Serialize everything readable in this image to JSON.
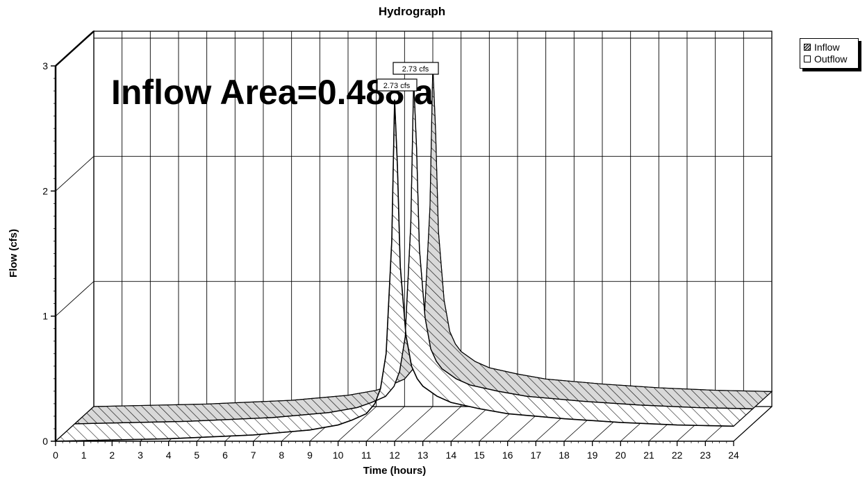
{
  "chart_data": {
    "type": "area",
    "title": "Hydrograph",
    "xlabel": "Time  (hours)",
    "ylabel": "Flow  (cfs)",
    "xlim": [
      0,
      24
    ],
    "ylim": [
      0,
      3
    ],
    "x_ticks": [
      "0",
      "1",
      "2",
      "3",
      "4",
      "5",
      "6",
      "7",
      "8",
      "9",
      "10",
      "11",
      "12",
      "13",
      "14",
      "15",
      "16",
      "17",
      "18",
      "19",
      "20",
      "21",
      "22",
      "23",
      "24"
    ],
    "y_ticks": [
      "0",
      "1",
      "2",
      "3"
    ],
    "grid": true,
    "legend_position": "top-right, outside plot",
    "annotation": "Inflow Area=0.488 a",
    "series": [
      {
        "name": "Inflow",
        "x": [
          0,
          2,
          4,
          6,
          7,
          8,
          9,
          9.5,
          10,
          10.5,
          11,
          11.3,
          11.5,
          11.7,
          11.9,
          12.0,
          12.1,
          12.2,
          12.4,
          12.6,
          12.8,
          13,
          13.5,
          14,
          15,
          16,
          18,
          20,
          22,
          24
        ],
        "y": [
          0,
          0.01,
          0.02,
          0.04,
          0.05,
          0.07,
          0.09,
          0.11,
          0.13,
          0.17,
          0.22,
          0.3,
          0.42,
          0.7,
          1.6,
          2.73,
          2.2,
          1.4,
          0.85,
          0.6,
          0.5,
          0.44,
          0.36,
          0.31,
          0.26,
          0.22,
          0.18,
          0.15,
          0.13,
          0.12
        ],
        "peak_label": "2.73 cfs",
        "pattern": "diagonal hatch, light gray"
      },
      {
        "name": "Outflow",
        "x": [
          0,
          2,
          4,
          6,
          7,
          8,
          9,
          9.5,
          10,
          10.5,
          11,
          11.3,
          11.5,
          11.7,
          11.9,
          12.0,
          12.1,
          12.2,
          12.4,
          12.6,
          12.8,
          13,
          13.5,
          14,
          15,
          16,
          18,
          20,
          22,
          24
        ],
        "y": [
          0,
          0.01,
          0.02,
          0.04,
          0.05,
          0.07,
          0.09,
          0.11,
          0.13,
          0.17,
          0.22,
          0.3,
          0.42,
          0.7,
          1.6,
          2.73,
          2.2,
          1.4,
          0.85,
          0.6,
          0.5,
          0.44,
          0.36,
          0.31,
          0.26,
          0.22,
          0.18,
          0.15,
          0.13,
          0.12
        ],
        "peak_label": "2.73 cfs",
        "pattern": "diagonal hatch, white"
      }
    ]
  }
}
